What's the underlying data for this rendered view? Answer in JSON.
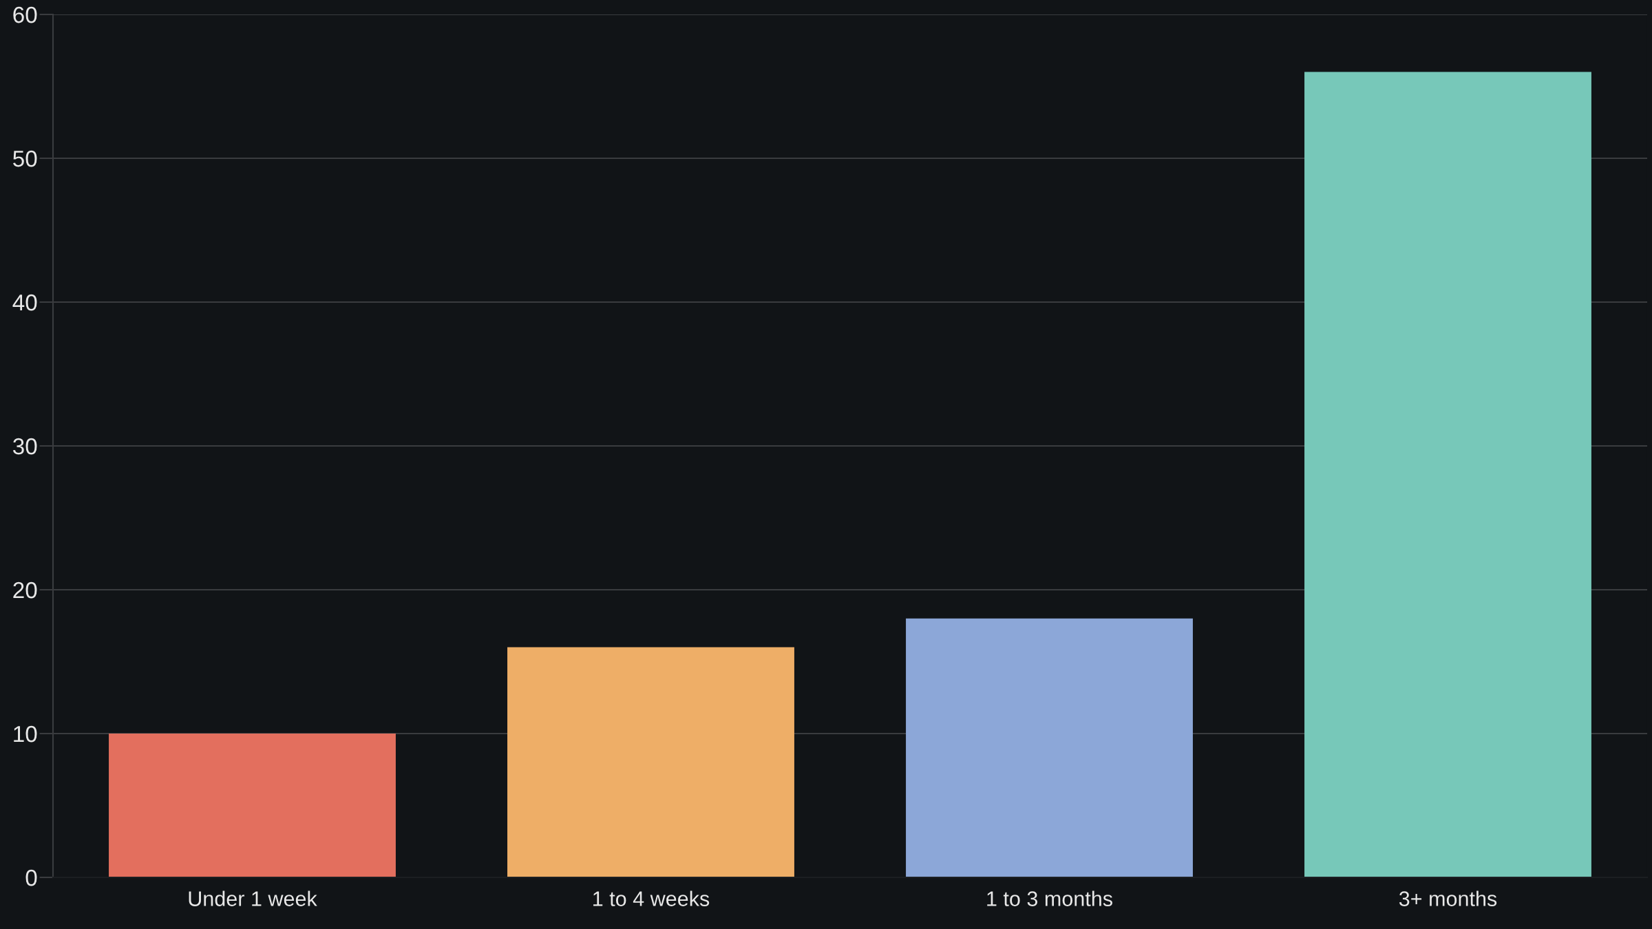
{
  "chart_data": {
    "type": "bar",
    "categories": [
      "Under 1 week",
      "1 to 4 weeks",
      "1 to 3 months",
      "3+ months"
    ],
    "values": [
      10,
      16,
      18,
      56
    ],
    "colors": [
      "#e36f5e",
      "#eeae67",
      "#8ca7d8",
      "#77c8b9"
    ],
    "ylim": [
      0,
      60
    ],
    "yticks": [
      0,
      10,
      20,
      30,
      40,
      50,
      60
    ],
    "grid": "y"
  }
}
